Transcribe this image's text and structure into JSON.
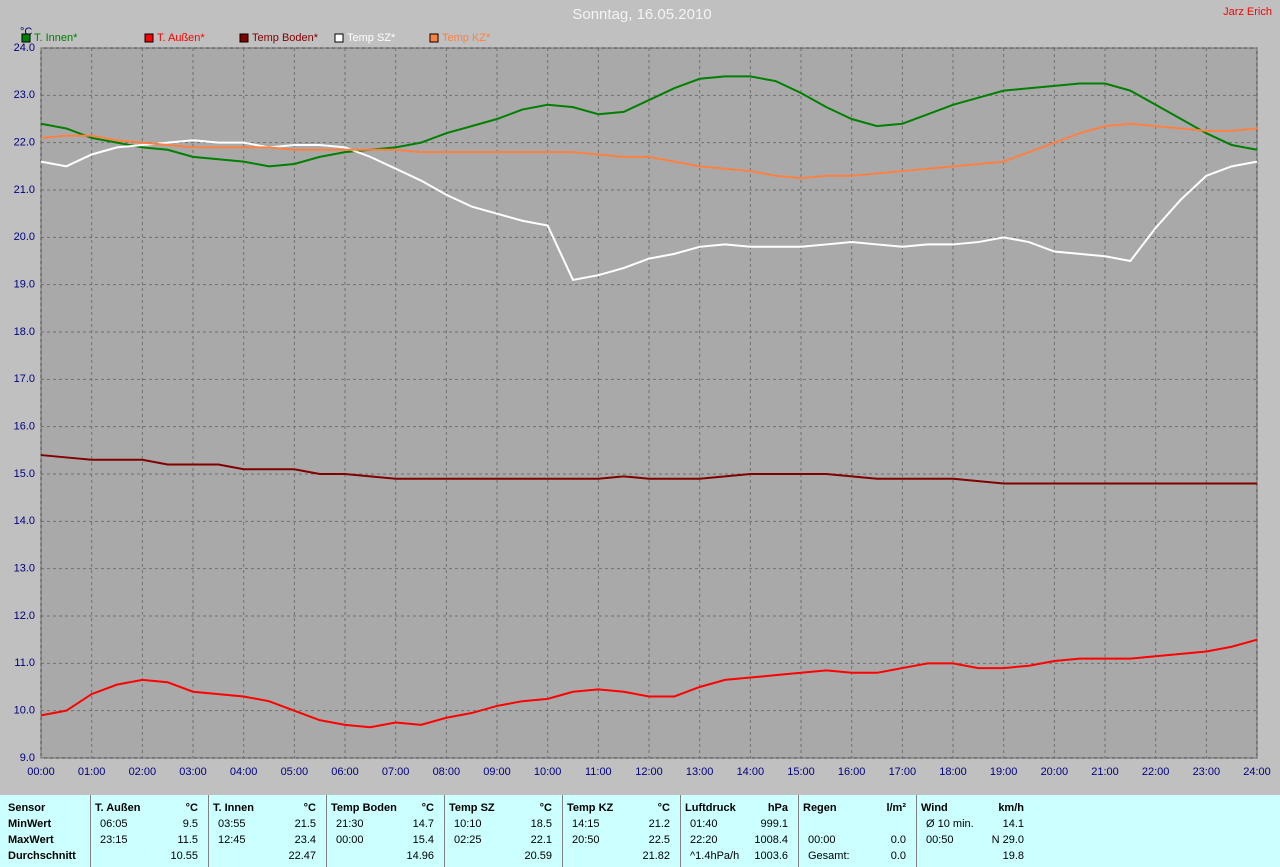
{
  "chart_data": {
    "type": "line",
    "title": "Sonntag, 16.05.2010",
    "author": "Jarz Erich",
    "y_label": "°C",
    "x": [
      0,
      0.5,
      1,
      1.5,
      2,
      2.5,
      3,
      3.5,
      4,
      4.5,
      5,
      5.5,
      6,
      6.5,
      7,
      7.5,
      8,
      8.5,
      9,
      9.5,
      10,
      10.5,
      11,
      11.5,
      12,
      12.5,
      13,
      13.5,
      14,
      14.5,
      15,
      15.5,
      16,
      16.5,
      17,
      17.5,
      18,
      18.5,
      19,
      19.5,
      20,
      20.5,
      21,
      21.5,
      22,
      22.5,
      23,
      23.5,
      24
    ],
    "xlim": [
      0,
      24
    ],
    "xticks": [
      {
        "value": 0,
        "label": "00:00"
      },
      {
        "value": 1,
        "label": "01:00"
      },
      {
        "value": 2,
        "label": "02:00"
      },
      {
        "value": 3,
        "label": "03:00"
      },
      {
        "value": 4,
        "label": "04:00"
      },
      {
        "value": 5,
        "label": "05:00"
      },
      {
        "value": 6,
        "label": "06:00"
      },
      {
        "value": 7,
        "label": "07:00"
      },
      {
        "value": 8,
        "label": "08:00"
      },
      {
        "value": 9,
        "label": "09:00"
      },
      {
        "value": 10,
        "label": "10:00"
      },
      {
        "value": 11,
        "label": "11:00"
      },
      {
        "value": 12,
        "label": "12:00"
      },
      {
        "value": 13,
        "label": "13:00"
      },
      {
        "value": 14,
        "label": "14:00"
      },
      {
        "value": 15,
        "label": "15:00"
      },
      {
        "value": 16,
        "label": "16:00"
      },
      {
        "value": 17,
        "label": "17:00"
      },
      {
        "value": 18,
        "label": "18:00"
      },
      {
        "value": 19,
        "label": "19:00"
      },
      {
        "value": 20,
        "label": "20:00"
      },
      {
        "value": 21,
        "label": "21:00"
      },
      {
        "value": 22,
        "label": "22:00"
      },
      {
        "value": 23,
        "label": "23:00"
      },
      {
        "value": 24,
        "label": "24:00"
      }
    ],
    "ylim": [
      9,
      24
    ],
    "yticks": [
      {
        "value": 9,
        "label": "9.0"
      },
      {
        "value": 10,
        "label": "10.0"
      },
      {
        "value": 11,
        "label": "11.0"
      },
      {
        "value": 12,
        "label": "12.0"
      },
      {
        "value": 13,
        "label": "13.0"
      },
      {
        "value": 14,
        "label": "14.0"
      },
      {
        "value": 15,
        "label": "15.0"
      },
      {
        "value": 16,
        "label": "16.0"
      },
      {
        "value": 17,
        "label": "17.0"
      },
      {
        "value": 18,
        "label": "18.0"
      },
      {
        "value": 19,
        "label": "19.0"
      },
      {
        "value": 20,
        "label": "20.0"
      },
      {
        "value": 21,
        "label": "21.0"
      },
      {
        "value": 22,
        "label": "22.0"
      },
      {
        "value": 23,
        "label": "23.0"
      },
      {
        "value": 24,
        "label": "24.0"
      }
    ],
    "grid": true,
    "series": [
      {
        "name": "T. Innen*",
        "color": "#008000",
        "values": [
          22.4,
          22.3,
          22.1,
          22.0,
          21.9,
          21.85,
          21.7,
          21.65,
          21.6,
          21.5,
          21.55,
          21.7,
          21.8,
          21.85,
          21.9,
          22.0,
          22.2,
          22.35,
          22.5,
          22.7,
          22.8,
          22.75,
          22.6,
          22.65,
          22.9,
          23.15,
          23.35,
          23.4,
          23.4,
          23.3,
          23.05,
          22.75,
          22.5,
          22.35,
          22.4,
          22.6,
          22.8,
          22.95,
          23.1,
          23.15,
          23.2,
          23.25,
          23.25,
          23.1,
          22.8,
          22.5,
          22.2,
          21.95,
          21.85
        ]
      },
      {
        "name": "T. Außen*",
        "color": "#ff0000",
        "values": [
          9.9,
          10.0,
          10.35,
          10.55,
          10.65,
          10.6,
          10.4,
          10.35,
          10.3,
          10.2,
          10.0,
          9.8,
          9.7,
          9.65,
          9.75,
          9.7,
          9.85,
          9.95,
          10.1,
          10.2,
          10.25,
          10.4,
          10.45,
          10.4,
          10.3,
          10.3,
          10.5,
          10.65,
          10.7,
          10.75,
          10.8,
          10.85,
          10.8,
          10.8,
          10.9,
          11.0,
          11.0,
          10.9,
          10.9,
          10.95,
          11.05,
          11.1,
          11.1,
          11.1,
          11.15,
          11.2,
          11.25,
          11.35,
          11.5
        ]
      },
      {
        "name": "Temp Boden*",
        "color": "#800000",
        "values": [
          15.4,
          15.35,
          15.3,
          15.3,
          15.3,
          15.2,
          15.2,
          15.2,
          15.1,
          15.1,
          15.1,
          15.0,
          15.0,
          14.95,
          14.9,
          14.9,
          14.9,
          14.9,
          14.9,
          14.9,
          14.9,
          14.9,
          14.9,
          14.95,
          14.9,
          14.9,
          14.9,
          14.95,
          15.0,
          15.0,
          15.0,
          15.0,
          14.95,
          14.9,
          14.9,
          14.9,
          14.9,
          14.85,
          14.8,
          14.8,
          14.8,
          14.8,
          14.8,
          14.8,
          14.8,
          14.8,
          14.8,
          14.8,
          14.8
        ]
      },
      {
        "name": "Temp SZ*",
        "color": "#ffffff",
        "values": [
          21.6,
          21.5,
          21.75,
          21.9,
          21.95,
          22.0,
          22.05,
          22.0,
          22.0,
          21.9,
          21.95,
          21.95,
          21.9,
          21.7,
          21.45,
          21.2,
          20.9,
          20.65,
          20.5,
          20.35,
          20.25,
          19.1,
          19.2,
          19.35,
          19.55,
          19.65,
          19.8,
          19.85,
          19.8,
          19.8,
          19.8,
          19.85,
          19.9,
          19.85,
          19.8,
          19.85,
          19.85,
          19.9,
          20.0,
          19.9,
          19.7,
          19.65,
          19.6,
          19.5,
          20.2,
          20.8,
          21.3,
          21.5,
          21.6
        ]
      },
      {
        "name": "Temp KZ*",
        "color": "#ff8040",
        "values": [
          22.1,
          22.15,
          22.15,
          22.05,
          22.0,
          21.95,
          21.9,
          21.9,
          21.9,
          21.9,
          21.85,
          21.85,
          21.85,
          21.85,
          21.85,
          21.8,
          21.8,
          21.8,
          21.8,
          21.8,
          21.8,
          21.8,
          21.75,
          21.7,
          21.7,
          21.6,
          21.5,
          21.45,
          21.4,
          21.3,
          21.25,
          21.3,
          21.3,
          21.35,
          21.4,
          21.45,
          21.5,
          21.55,
          21.6,
          21.8,
          22.0,
          22.2,
          22.35,
          22.4,
          22.35,
          22.3,
          22.25,
          22.25,
          22.3
        ]
      }
    ]
  },
  "stats": {
    "row_labels": [
      "Sensor",
      "MinWert",
      "MaxWert",
      "Durchschnitt"
    ],
    "columns": [
      {
        "name": "T. Außen",
        "unit": "°C",
        "rows": [
          [
            "06:05",
            "9.5"
          ],
          [
            "23:15",
            "11.5"
          ],
          [
            null,
            "10.55"
          ]
        ]
      },
      {
        "name": "T. Innen",
        "unit": "°C",
        "rows": [
          [
            "03:55",
            "21.5"
          ],
          [
            "12:45",
            "23.4"
          ],
          [
            null,
            "22.47"
          ]
        ]
      },
      {
        "name": "Temp Boden",
        "unit": "°C",
        "rows": [
          [
            "21:30",
            "14.7"
          ],
          [
            "00:00",
            "15.4"
          ],
          [
            null,
            "14.96"
          ]
        ]
      },
      {
        "name": "Temp SZ",
        "unit": "°C",
        "rows": [
          [
            "10:10",
            "18.5"
          ],
          [
            "02:25",
            "22.1"
          ],
          [
            null,
            "20.59"
          ]
        ]
      },
      {
        "name": "Temp KZ",
        "unit": "°C",
        "rows": [
          [
            "14:15",
            "21.2"
          ],
          [
            "20:50",
            "22.5"
          ],
          [
            null,
            "21.82"
          ]
        ]
      },
      {
        "name": "Luftdruck",
        "unit": "hPa",
        "rows": [
          [
            "01:40",
            "999.1"
          ],
          [
            "22:20",
            "1008.4"
          ],
          [
            "^1.4hPa/h",
            "1003.6"
          ]
        ]
      },
      {
        "name": "Regen",
        "unit": "l/m²",
        "rows": [
          [
            null,
            null
          ],
          [
            "00:00",
            "0.0"
          ],
          [
            "Gesamt:",
            "0.0"
          ]
        ]
      },
      {
        "name": "Wind",
        "unit": "km/h",
        "rows": [
          [
            "Ø 10 min.",
            "14.1"
          ],
          [
            "00:50",
            "N 29.0"
          ],
          [
            null,
            "19.8"
          ]
        ]
      }
    ]
  }
}
